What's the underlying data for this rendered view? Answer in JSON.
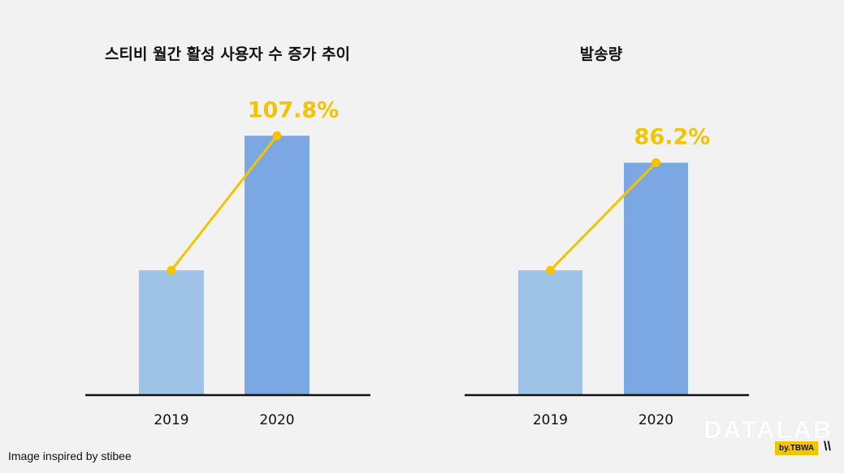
{
  "chart_data": [
    {
      "type": "bar",
      "title": "스티비 월간 활성 사용자 수 증가 추이",
      "categories": [
        "2019",
        "2020"
      ],
      "values": [
        100,
        207.8
      ],
      "growth_label": "107.8%",
      "ylim": [
        0,
        210
      ],
      "xlabel": "",
      "ylabel": "",
      "bar_colors": [
        "#9fc3e7",
        "#7ba7e3"
      ],
      "line_color": "#f5c400"
    },
    {
      "type": "bar",
      "title": "발송량",
      "categories": [
        "2019",
        "2020"
      ],
      "values": [
        100,
        186.2
      ],
      "growth_label": "86.2%",
      "ylim": [
        0,
        210
      ],
      "xlabel": "",
      "ylabel": "",
      "bar_colors": [
        "#9fc3e7",
        "#7ba7e3"
      ],
      "line_color": "#f5c400"
    }
  ],
  "credit": "Image inspired by stibee",
  "logo": {
    "word": "DATALAB",
    "sub": "by.TBWA",
    "mark": "\\\\"
  },
  "colors": {
    "background": "#f2f2f2",
    "accent": "#f5c400",
    "axis": "#111111"
  }
}
